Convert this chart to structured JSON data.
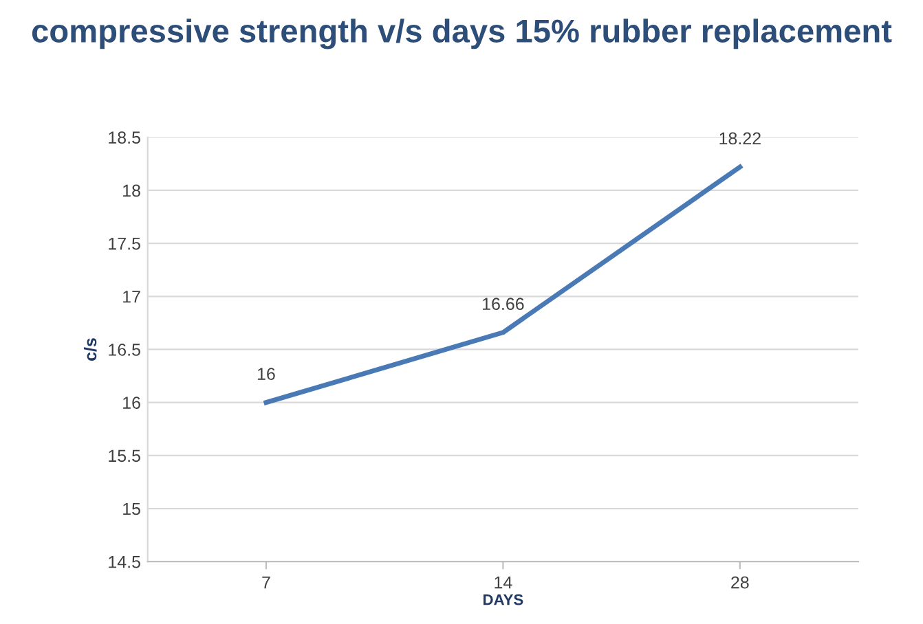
{
  "chart_data": {
    "type": "line",
    "title": "compressive strength v/s days 15% rubber replacement",
    "xlabel": "DAYS",
    "ylabel": "c/s",
    "categories": [
      "7",
      "14",
      "28"
    ],
    "series": [
      {
        "color": "#4a7ab5",
        "values": [
          16,
          16.66,
          18.22
        ]
      }
    ],
    "ylim": [
      14.5,
      18.5
    ],
    "yticks": [
      14.5,
      15,
      15.5,
      16,
      16.5,
      17,
      17.5,
      18,
      18.5
    ],
    "grid": "y",
    "data_labels": true,
    "marker": "none",
    "line_style": "solid"
  }
}
